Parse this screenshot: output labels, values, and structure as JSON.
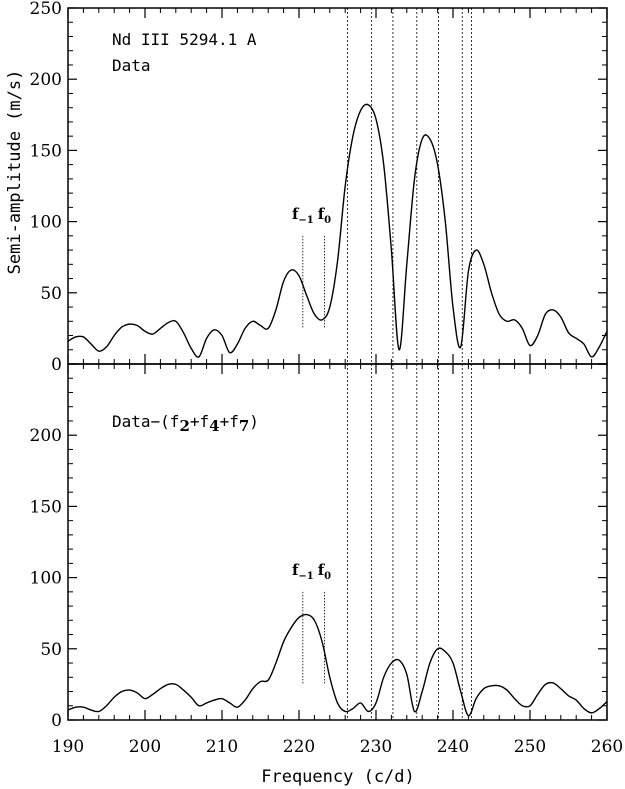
{
  "chart_data": [
    {
      "type": "line",
      "panel": "top",
      "annotation_lines": [
        "Nd III 5294.1 A",
        "Data"
      ],
      "ylabel": "Semi-amplitude (m/s)",
      "xlim": [
        190,
        260
      ],
      "ylim": [
        0,
        250
      ],
      "ytick_labels": [
        "0",
        "50",
        "100",
        "150",
        "200",
        "250"
      ],
      "x": [
        190,
        191,
        192,
        193,
        194,
        195,
        196,
        197,
        198,
        199,
        200,
        201,
        202,
        203,
        204,
        205,
        206,
        207,
        208,
        209,
        210,
        211,
        212,
        213,
        214,
        215,
        216,
        217,
        218,
        219,
        220,
        221,
        222,
        223,
        224,
        225,
        226,
        227,
        228,
        229,
        230,
        231,
        232,
        233,
        234,
        235,
        236,
        237,
        238,
        239,
        240,
        241,
        242,
        243,
        244,
        245,
        246,
        247,
        248,
        249,
        250,
        251,
        252,
        253,
        254,
        255,
        256,
        257,
        258,
        259,
        260
      ],
      "y": [
        16,
        19,
        19,
        14,
        9,
        12,
        20,
        26,
        28,
        27,
        23,
        21,
        25,
        29,
        30,
        22,
        11,
        5,
        18,
        24,
        20,
        8,
        14,
        25,
        30,
        27,
        25,
        38,
        58,
        66,
        62,
        48,
        35,
        31,
        40,
        72,
        125,
        160,
        178,
        182,
        172,
        140,
        80,
        10,
        70,
        130,
        158,
        158,
        140,
        100,
        40,
        12,
        65,
        80,
        70,
        50,
        35,
        30,
        31,
        25,
        13,
        20,
        35,
        38,
        33,
        22,
        18,
        14,
        5,
        12,
        23
      ],
      "markers": [
        {
          "x": 220.5,
          "label": "f",
          "sub": "−1"
        },
        {
          "x": 223.3,
          "label": "f",
          "sub": "0"
        }
      ]
    },
    {
      "type": "line",
      "panel": "bottom",
      "annotation_label": "Data−(f",
      "annotation_subs": [
        "2",
        "4",
        "7"
      ],
      "annotation_suffix": ")",
      "xlabel": "Frequency (c/d)",
      "xlim": [
        190,
        260
      ],
      "ylim": [
        0,
        250
      ],
      "ytick_labels": [
        "0",
        "50",
        "100",
        "150",
        "200"
      ],
      "xtick_labels": [
        "190",
        "200",
        "210",
        "220",
        "230",
        "240",
        "250",
        "260"
      ],
      "x": [
        190,
        191,
        192,
        193,
        194,
        195,
        196,
        197,
        198,
        199,
        200,
        201,
        202,
        203,
        204,
        205,
        206,
        207,
        208,
        209,
        210,
        211,
        212,
        213,
        214,
        215,
        216,
        217,
        218,
        219,
        220,
        221,
        222,
        223,
        224,
        225,
        226,
        227,
        228,
        229,
        230,
        231,
        232,
        233,
        234,
        235,
        236,
        237,
        238,
        239,
        240,
        241,
        242,
        243,
        244,
        245,
        246,
        247,
        248,
        249,
        250,
        251,
        252,
        253,
        254,
        255,
        256,
        257,
        258,
        259,
        260
      ],
      "y": [
        7,
        9,
        9,
        7,
        6,
        10,
        16,
        20,
        21,
        19,
        15,
        18,
        22,
        25,
        25,
        21,
        16,
        10,
        12,
        14,
        15,
        12,
        9,
        14,
        22,
        27,
        28,
        40,
        55,
        65,
        72,
        74,
        70,
        55,
        30,
        12,
        6,
        8,
        12,
        6,
        12,
        30,
        40,
        42,
        32,
        6,
        20,
        40,
        50,
        48,
        40,
        20,
        3,
        15,
        22,
        24,
        24,
        21,
        15,
        10,
        10,
        18,
        25,
        26,
        22,
        17,
        14,
        8,
        5,
        8,
        13
      ],
      "markers": [
        {
          "x": 220.5,
          "label": "f",
          "sub": "−1"
        },
        {
          "x": 223.3,
          "label": "f",
          "sub": "0"
        }
      ]
    }
  ],
  "vertical_lines_x": [
    226.3,
    229.4,
    232.2,
    235.3,
    238.1,
    241.2,
    242.4
  ]
}
